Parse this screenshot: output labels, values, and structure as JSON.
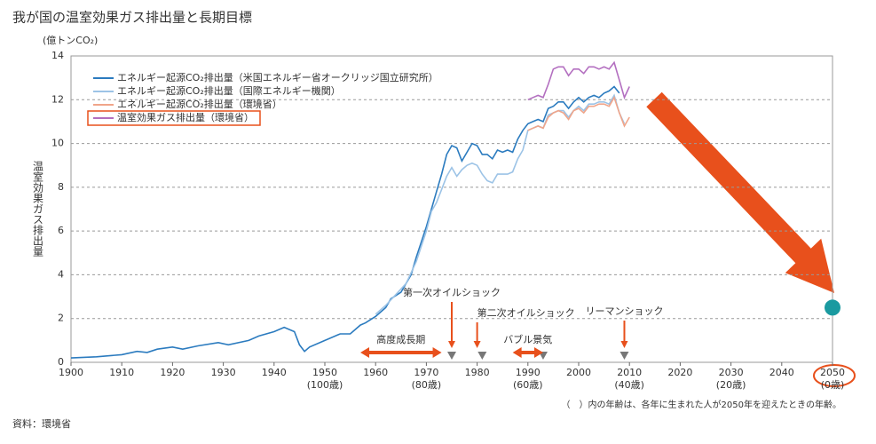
{
  "chart_data": {
    "type": "line",
    "title": "我が国の温室効果ガス排出量と長期目標",
    "y_unit": "(億トンCO₂)",
    "y_label": "温室効果ガス排出量",
    "note": "（　）内の年齢は、各年に生まれた人が2050年を迎えたときの年齢。",
    "source": "資料：環境省",
    "xlim": [
      1900,
      2050
    ],
    "ylim": [
      0,
      14
    ],
    "xticks": [
      1900,
      1910,
      1920,
      1930,
      1940,
      1950,
      1960,
      1970,
      1980,
      1990,
      2000,
      2010,
      2020,
      2030,
      2040,
      2050
    ],
    "x_sublabels": [
      {
        "value": 1950,
        "label": "(100歳)"
      },
      {
        "value": 1970,
        "label": "(80歳)"
      },
      {
        "value": 1990,
        "label": "(60歳)"
      },
      {
        "value": 2010,
        "label": "(40歳)"
      },
      {
        "value": 2030,
        "label": "(20歳)"
      },
      {
        "value": 2050,
        "label": "(0歳)"
      }
    ],
    "yticks": [
      0,
      2,
      4,
      6,
      8,
      10,
      12,
      14
    ],
    "grid": true,
    "legend": "upper left",
    "series": [
      {
        "name": "エネルギー起源CO₂排出量（米国エネルギー省オークリッジ国立研究所）",
        "color": "#2b7bbf",
        "x": [
          1900,
          1905,
          1910,
          1913,
          1915,
          1917,
          1920,
          1922,
          1925,
          1929,
          1931,
          1935,
          1937,
          1940,
          1942,
          1944,
          1945,
          1946,
          1947,
          1950,
          1953,
          1955,
          1957,
          1958,
          1960,
          1962,
          1963,
          1965,
          1967,
          1968,
          1970,
          1971,
          1972,
          1973,
          1974,
          1975,
          1976,
          1977,
          1978,
          1979,
          1980,
          1981,
          1982,
          1983,
          1984,
          1985,
          1986,
          1987,
          1988,
          1989,
          1990,
          1991,
          1992,
          1993,
          1994,
          1995,
          1996,
          1997,
          1998,
          1999,
          2000,
          2001,
          2002,
          2003,
          2004,
          2005,
          2006,
          2007,
          2008
        ],
        "values": [
          0.2,
          0.25,
          0.35,
          0.5,
          0.45,
          0.6,
          0.7,
          0.6,
          0.75,
          0.9,
          0.8,
          1.0,
          1.2,
          1.4,
          1.6,
          1.4,
          0.8,
          0.5,
          0.7,
          1.0,
          1.3,
          1.3,
          1.7,
          1.8,
          2.1,
          2.5,
          2.9,
          3.2,
          4.0,
          4.8,
          6.2,
          7.0,
          7.8,
          8.6,
          9.5,
          9.9,
          9.8,
          9.2,
          9.6,
          10.0,
          9.9,
          9.5,
          9.5,
          9.3,
          9.7,
          9.6,
          9.7,
          9.6,
          10.2,
          10.6,
          10.9,
          11.0,
          11.1,
          11.0,
          11.6,
          11.7,
          11.9,
          11.9,
          11.6,
          11.9,
          12.1,
          11.9,
          12.1,
          12.2,
          12.1,
          12.3,
          12.4,
          12.6,
          12.3
        ]
      },
      {
        "name": "エネルギー起源CO₂排出量（国際エネルギー機関）",
        "color": "#9cc3e6",
        "x": [
          1960,
          1962,
          1964,
          1966,
          1968,
          1970,
          1971,
          1972,
          1973,
          1974,
          1975,
          1976,
          1977,
          1978,
          1979,
          1980,
          1981,
          1982,
          1983,
          1984,
          1985,
          1986,
          1987,
          1988,
          1989,
          1990,
          1991,
          1992,
          1993,
          1994,
          1995,
          1996,
          1997,
          1998,
          1999,
          2000,
          2001,
          2002,
          2003,
          2004,
          2005,
          2006,
          2007,
          2008,
          2009
        ],
        "values": [
          2.2,
          2.6,
          3.1,
          3.6,
          4.6,
          6.0,
          6.9,
          7.3,
          7.9,
          8.5,
          8.9,
          8.5,
          8.8,
          9.0,
          9.1,
          9.0,
          8.6,
          8.3,
          8.2,
          8.6,
          8.6,
          8.6,
          8.7,
          9.3,
          9.7,
          10.6,
          10.7,
          10.8,
          10.7,
          11.3,
          11.4,
          11.5,
          11.5,
          11.2,
          11.5,
          11.7,
          11.5,
          11.8,
          11.8,
          11.9,
          11.9,
          11.8,
          12.2,
          11.4,
          10.9
        ]
      },
      {
        "name": "エネルギー起源CO₂排出量（環境省）",
        "color": "#f0a58a",
        "x": [
          1990,
          1991,
          1992,
          1993,
          1994,
          1995,
          1996,
          1997,
          1998,
          1999,
          2000,
          2001,
          2002,
          2003,
          2004,
          2005,
          2006,
          2007,
          2008,
          2009,
          2010
        ],
        "values": [
          10.6,
          10.7,
          10.8,
          10.7,
          11.2,
          11.4,
          11.5,
          11.4,
          11.1,
          11.5,
          11.6,
          11.4,
          11.7,
          11.7,
          11.8,
          11.8,
          11.7,
          12.1,
          11.4,
          10.8,
          11.2
        ]
      },
      {
        "name": "温室効果ガス排出量（環境省）",
        "color": "#b36fc0",
        "highlighted": true,
        "x": [
          1990,
          1991,
          1992,
          1993,
          1994,
          1995,
          1996,
          1997,
          1998,
          1999,
          2000,
          2001,
          2002,
          2003,
          2004,
          2005,
          2006,
          2007,
          2008,
          2009,
          2010
        ],
        "values": [
          12.0,
          12.1,
          12.2,
          12.1,
          12.7,
          13.4,
          13.5,
          13.5,
          13.1,
          13.4,
          13.4,
          13.2,
          13.5,
          13.5,
          13.4,
          13.5,
          13.4,
          13.7,
          12.9,
          12.1,
          12.6
        ]
      }
    ],
    "target": {
      "x": 2050,
      "value": 2.5,
      "color": "#1a9aa0"
    },
    "annotations": [
      {
        "label": "高度成長期",
        "kind": "range",
        "x": [
          1957,
          1973
        ]
      },
      {
        "label": "第一次オイルショック",
        "kind": "event",
        "x": 1975
      },
      {
        "label": "第二次オイルショック",
        "kind": "event",
        "x": 1980
      },
      {
        "label": "バブル景気",
        "kind": "range",
        "x": [
          1987,
          1993
        ]
      },
      {
        "label": "リーマンショック",
        "kind": "event",
        "x": 2009
      }
    ],
    "markers": [
      1975,
      1981,
      1993,
      2009
    ]
  }
}
